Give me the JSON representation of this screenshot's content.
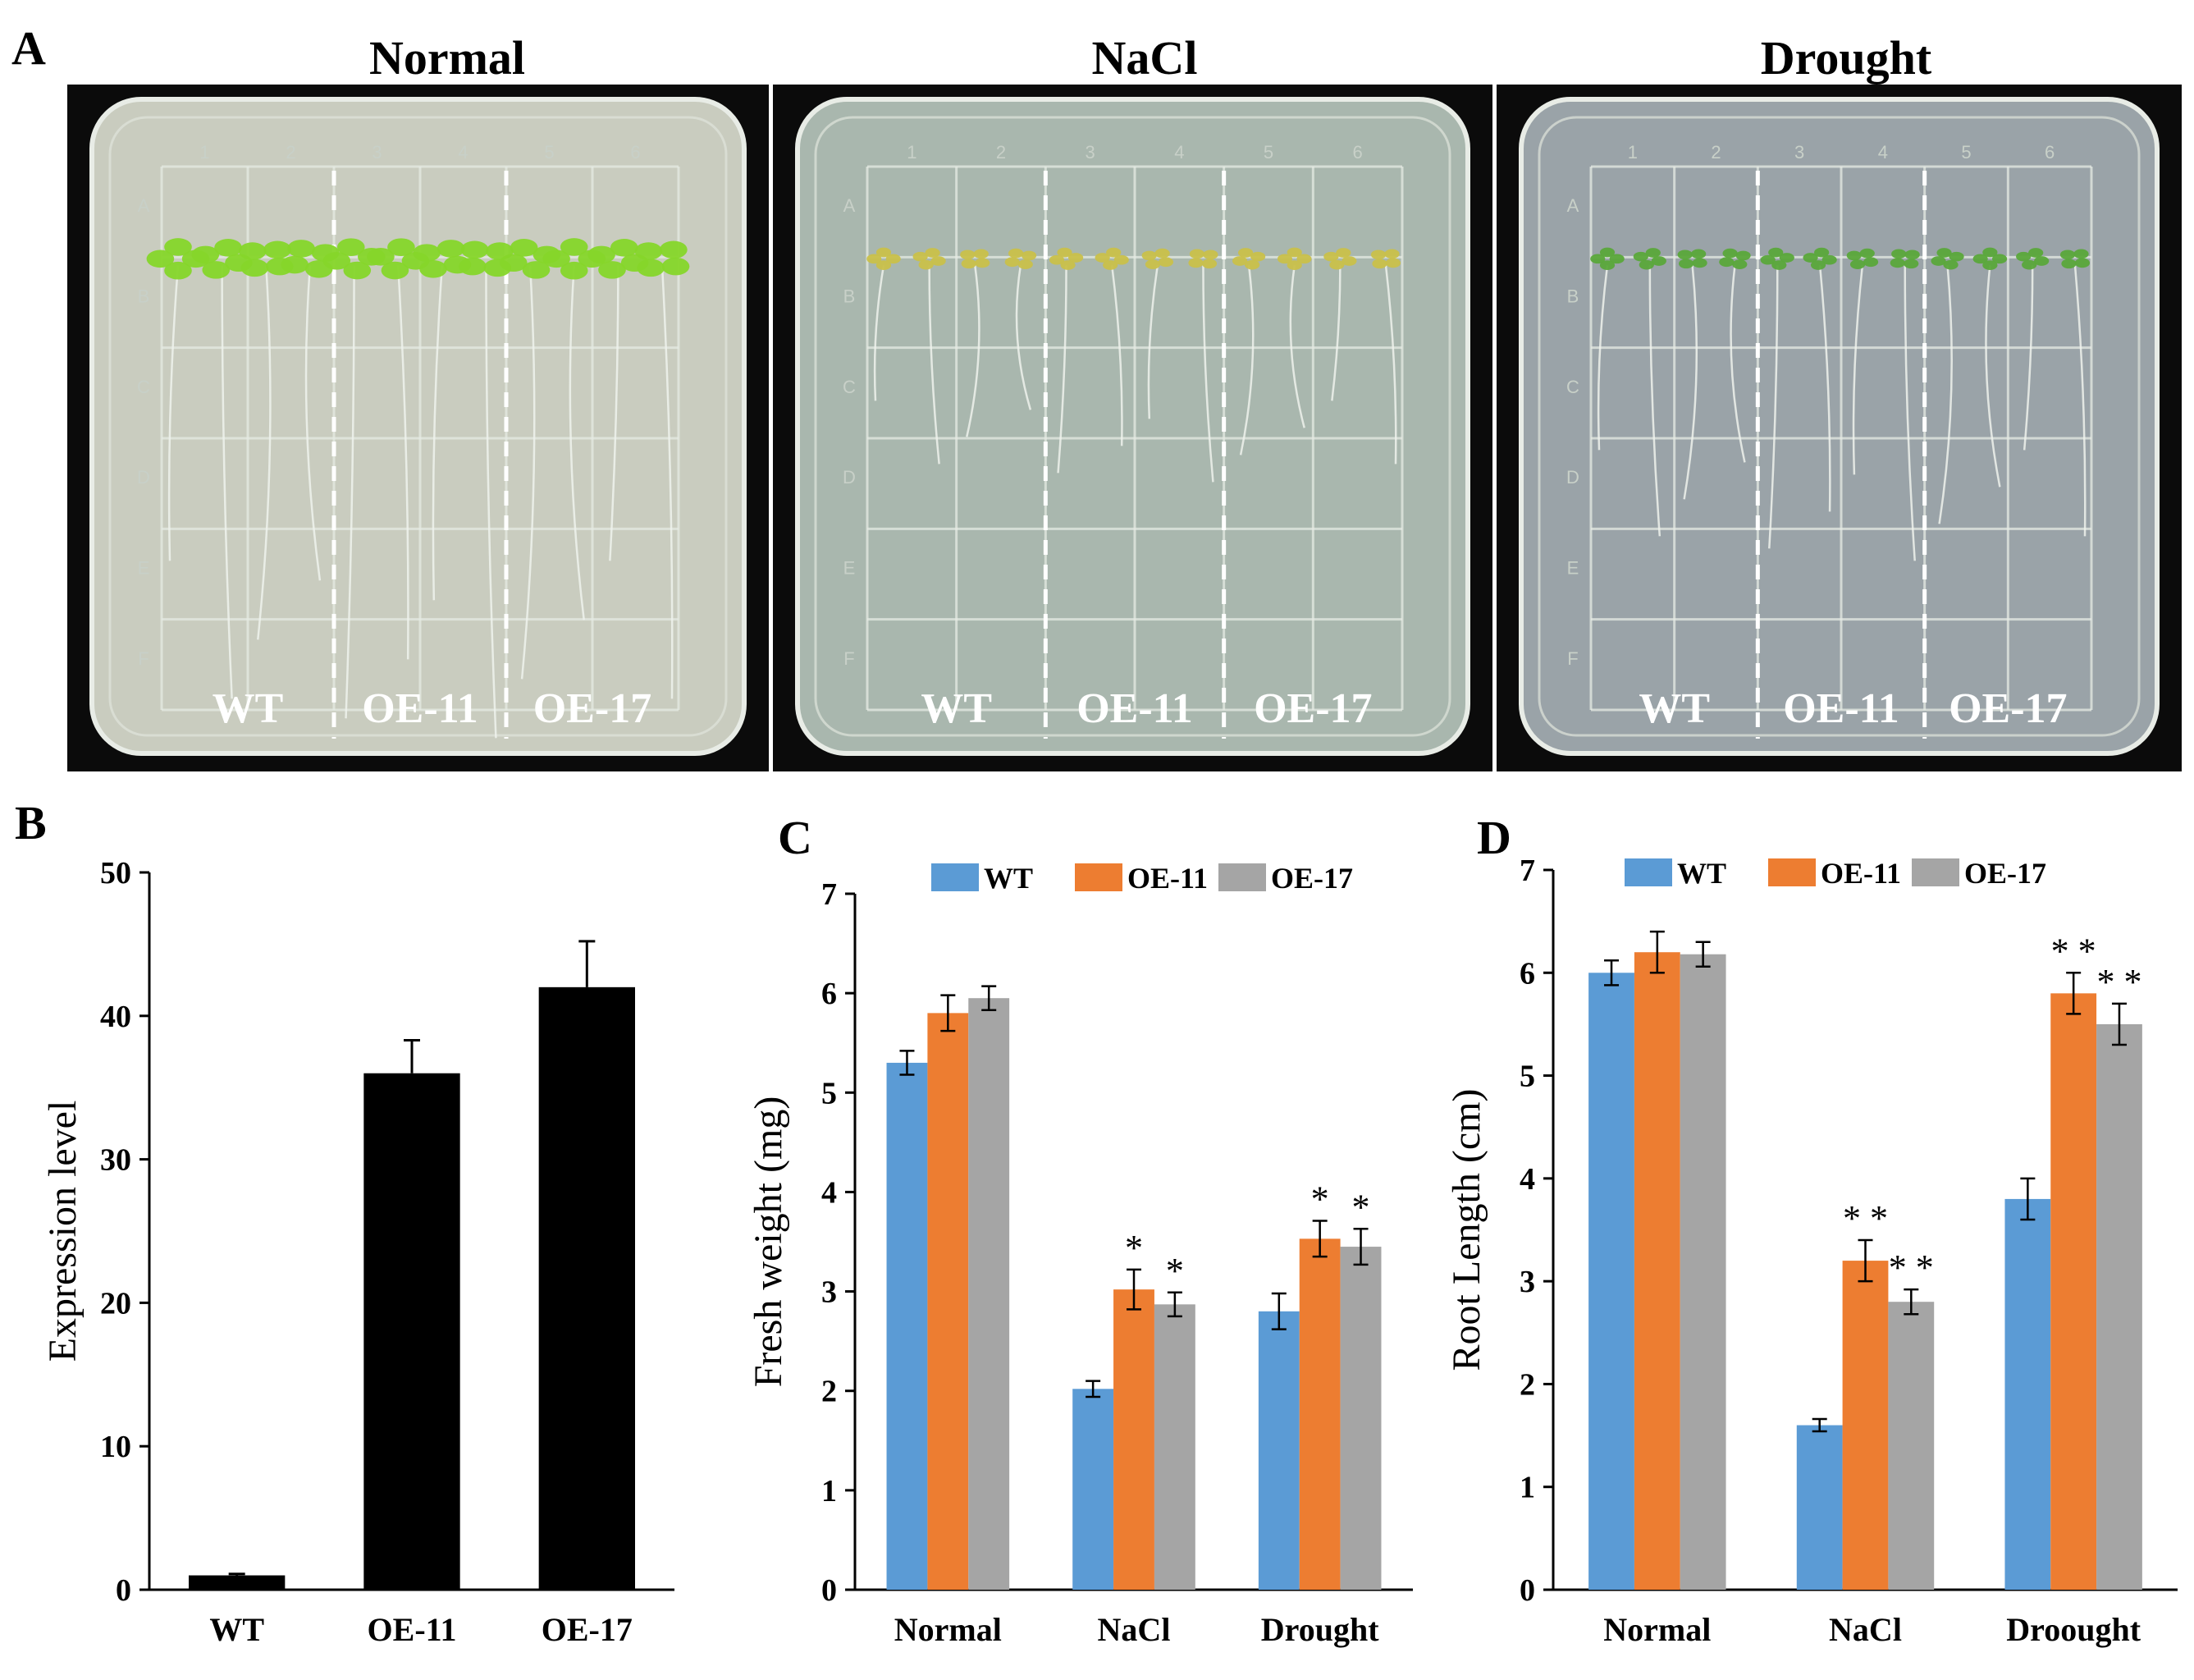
{
  "panel_labels": {
    "a": "A",
    "b": "B",
    "c": "C",
    "d": "D"
  },
  "plates": [
    {
      "title": "Normal",
      "genotypes": [
        "WT",
        "OE-11",
        "OE-17"
      ],
      "bg": "#c9ccbf"
    },
    {
      "title": "NaCl",
      "genotypes": [
        "WT",
        "OE-11",
        "OE-17"
      ],
      "bg": "#a9b7ae"
    },
    {
      "title": "Drought",
      "genotypes": [
        "WT",
        "OE-11",
        "OE-17"
      ],
      "bg": "#9aa3a8"
    }
  ],
  "plate_grid": {
    "cols": [
      "1",
      "2",
      "3",
      "4",
      "5",
      "6"
    ],
    "rows": [
      "A",
      "B",
      "C",
      "D",
      "E",
      "F"
    ]
  },
  "colors": {
    "wt": "#5b9bd5",
    "oe11": "#ed7d31",
    "oe17": "#a5a5a5",
    "black": "#000000"
  },
  "chart_data": [
    {
      "id": "B",
      "type": "bar",
      "categories": [
        "WT",
        "OE-11",
        "OE-17"
      ],
      "values": [
        1.0,
        36.0,
        42.0
      ],
      "errors": [
        0.1,
        2.3,
        3.2
      ],
      "ylabel": "Expression  level",
      "ylim": [
        0,
        50
      ],
      "yticks": [
        "0",
        "10",
        "20",
        "30",
        "40",
        "50"
      ],
      "bar_color": "#000000"
    },
    {
      "id": "C",
      "type": "bar",
      "categories": [
        "Normal",
        "NaCl",
        "Drought"
      ],
      "ylabel": "Fresh weight (mg)",
      "ylim": [
        0,
        7
      ],
      "yticks": [
        "0",
        "1",
        "2",
        "3",
        "4",
        "5",
        "6",
        "7"
      ],
      "series": [
        {
          "name": "WT",
          "color": "#5b9bd5",
          "values": [
            5.3,
            2.02,
            2.8
          ],
          "errors": [
            0.12,
            0.08,
            0.18
          ]
        },
        {
          "name": "OE-11",
          "color": "#ed7d31",
          "values": [
            5.8,
            3.02,
            3.53
          ],
          "errors": [
            0.18,
            0.2,
            0.18
          ]
        },
        {
          "name": "OE-17",
          "color": "#a5a5a5",
          "values": [
            5.95,
            2.87,
            3.45
          ],
          "errors": [
            0.12,
            0.12,
            0.18
          ]
        }
      ],
      "annotations": [
        {
          "category": 1,
          "series": 1,
          "text": "*"
        },
        {
          "category": 1,
          "series": 2,
          "text": "*"
        },
        {
          "category": 2,
          "series": 1,
          "text": "*"
        },
        {
          "category": 2,
          "series": 2,
          "text": "*"
        }
      ],
      "legend": "top"
    },
    {
      "id": "D",
      "type": "bar",
      "categories": [
        "Normal",
        "NaCl",
        "Droought"
      ],
      "ylabel": "Root  Length  (cm)",
      "ylim": [
        0,
        7
      ],
      "yticks": [
        "0",
        "1",
        "2",
        "3",
        "4",
        "5",
        "6",
        "7"
      ],
      "series": [
        {
          "name": "WT",
          "color": "#5b9bd5",
          "values": [
            6.0,
            1.6,
            3.8
          ],
          "errors": [
            0.12,
            0.06,
            0.2
          ]
        },
        {
          "name": "OE-11",
          "color": "#ed7d31",
          "values": [
            6.2,
            3.2,
            5.8
          ],
          "errors": [
            0.2,
            0.2,
            0.2
          ]
        },
        {
          "name": "OE-17",
          "color": "#a5a5a5",
          "values": [
            6.18,
            2.8,
            5.5
          ],
          "errors": [
            0.12,
            0.12,
            0.2
          ]
        }
      ],
      "annotations": [
        {
          "category": 1,
          "series": 1,
          "text": "* *"
        },
        {
          "category": 1,
          "series": 2,
          "text": "* *"
        },
        {
          "category": 2,
          "series": 1,
          "text": "* *"
        },
        {
          "category": 2,
          "series": 2,
          "text": "* *"
        }
      ],
      "legend": "top"
    }
  ]
}
